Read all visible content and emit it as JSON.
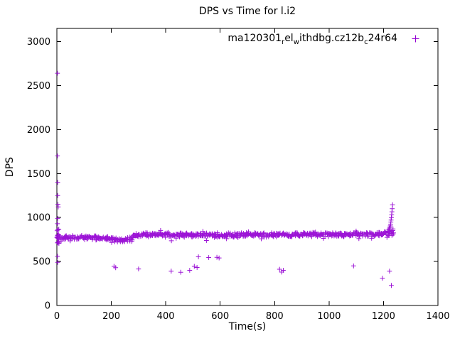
{
  "window": {
    "background": "#ffffff"
  },
  "chart_data": {
    "type": "scatter",
    "title": "DPS vs Time for l.i2",
    "xlabel": "Time(s)",
    "ylabel": "DPS",
    "xlim": [
      0,
      1400
    ],
    "ylim": [
      0,
      3150
    ],
    "xticks": [
      0,
      200,
      400,
      600,
      800,
      1000,
      1200,
      1400
    ],
    "yticks": [
      0,
      500,
      1000,
      1500,
      2000,
      2500,
      3000
    ],
    "grid": false,
    "axis_color": "#000000",
    "legend": {
      "position": "top-right-inside",
      "marker_glyph": "plus",
      "entries": [
        {
          "name": "ma120301_rel_withdbg.cz12b_c24r64",
          "label_segments": [
            {
              "text": "ma120301"
            },
            {
              "text": "r",
              "sub": true
            },
            {
              "text": "el"
            },
            {
              "text": "w",
              "sub": true
            },
            {
              "text": "ithdbg.cz12b"
            },
            {
              "text": "c",
              "sub": true
            },
            {
              "text": "24r64"
            }
          ]
        }
      ]
    },
    "series": [
      {
        "name": "ma120301_rel_withdbg.cz12b_c24r64",
        "marker": "plus",
        "color": "#9400d3",
        "band": {
          "description": "dense steady-state scatter band of DPS samples vs time",
          "count": 700,
          "x_min": 0,
          "x_max": 1237,
          "x_jitter": 3,
          "y_jitter": 30,
          "profile": [
            [
              0,
              775
            ],
            [
              140,
              772
            ],
            [
              190,
              760
            ],
            [
              230,
              742
            ],
            [
              265,
              752
            ],
            [
              290,
              795
            ],
            [
              360,
              808
            ],
            [
              500,
              800
            ],
            [
              620,
              802
            ],
            [
              800,
              806
            ],
            [
              1000,
              808
            ],
            [
              1150,
              810
            ],
            [
              1237,
              818
            ]
          ]
        },
        "startup_strip": {
          "x_max": 8,
          "y_min": 700,
          "y_max": 880,
          "count": 14
        },
        "outliers": [
          [
            2,
            2640
          ],
          [
            2,
            1700
          ],
          [
            3,
            1400
          ],
          [
            3,
            1250
          ],
          [
            4,
            1150
          ],
          [
            5,
            1120
          ],
          [
            3,
            990
          ],
          [
            2,
            930
          ],
          [
            4,
            860
          ],
          [
            2,
            560
          ],
          [
            3,
            490
          ],
          [
            210,
            445
          ],
          [
            216,
            430
          ],
          [
            300,
            415
          ],
          [
            420,
            390
          ],
          [
            455,
            378
          ],
          [
            488,
            400
          ],
          [
            505,
            445
          ],
          [
            515,
            432
          ],
          [
            520,
            553
          ],
          [
            558,
            545
          ],
          [
            588,
            548
          ],
          [
            596,
            540
          ],
          [
            818,
            412
          ],
          [
            826,
            380
          ],
          [
            832,
            400
          ],
          [
            1090,
            450
          ],
          [
            1196,
            310
          ],
          [
            1222,
            390
          ],
          [
            1229,
            228
          ],
          [
            1216,
            845
          ],
          [
            1219,
            858
          ],
          [
            1221,
            872
          ],
          [
            1223,
            888
          ],
          [
            1225,
            905
          ],
          [
            1226,
            925
          ],
          [
            1227,
            948
          ],
          [
            1228,
            972
          ],
          [
            1229,
            1000
          ],
          [
            1230,
            1030
          ],
          [
            1231,
            1065
          ],
          [
            1232,
            1100
          ],
          [
            1233,
            1145
          ],
          [
            1224,
            838
          ],
          [
            1234,
            852
          ],
          [
            1235,
            870
          ]
        ]
      }
    ]
  }
}
